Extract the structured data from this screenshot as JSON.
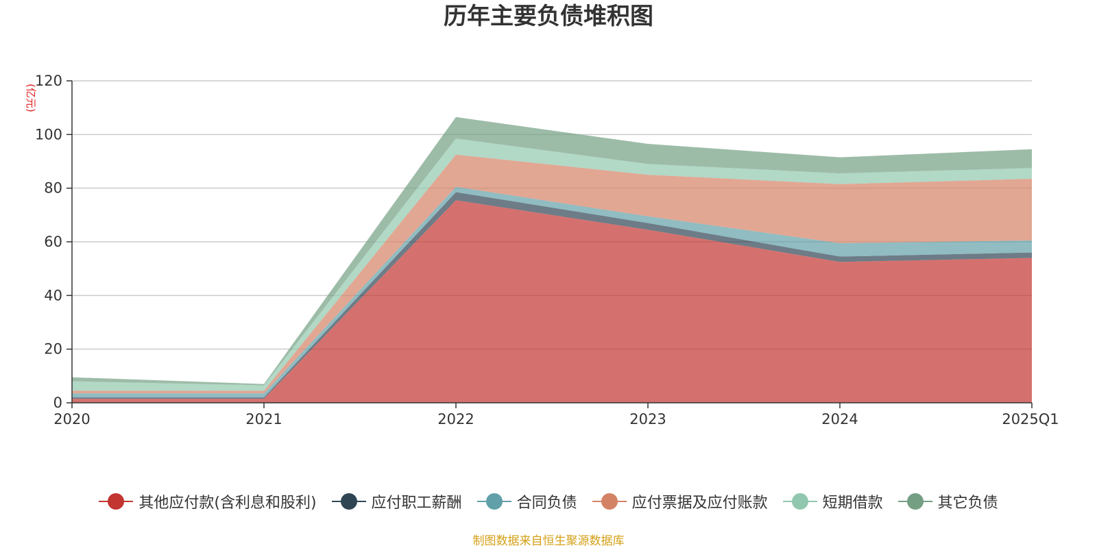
{
  "chart_data": {
    "type": "area",
    "stacked": true,
    "title": "历年主要负债堆积图",
    "ylabel": "(亿元)",
    "xlabel": "",
    "ylim": [
      0,
      120
    ],
    "yticks": [
      0,
      20,
      40,
      60,
      80,
      100,
      120
    ],
    "grid": true,
    "legend_position": "bottom",
    "categories": [
      "2020",
      "2021",
      "2022",
      "2023",
      "2024",
      "2025Q1"
    ],
    "series": [
      {
        "name": "其他应付款(含利息和股利)",
        "color": "#c23531",
        "values": [
          1.5,
          1.5,
          75.5,
          64.5,
          52.5,
          54.0
        ]
      },
      {
        "name": "应付职工薪酬",
        "color": "#2f4554",
        "values": [
          0.5,
          0.5,
          3.0,
          2.5,
          2.0,
          2.0
        ]
      },
      {
        "name": "合同负债",
        "color": "#61a0a8",
        "values": [
          1.5,
          1.5,
          2.0,
          2.5,
          5.0,
          4.5
        ]
      },
      {
        "name": "应付票据及应付账款",
        "color": "#d48265",
        "values": [
          1.0,
          1.0,
          12.0,
          15.5,
          22.0,
          23.0
        ]
      },
      {
        "name": "短期借款",
        "color": "#91c7ae",
        "values": [
          3.5,
          2.0,
          6.0,
          4.0,
          4.0,
          4.0
        ]
      },
      {
        "name": "其它负债",
        "color": "#749f83",
        "values": [
          1.5,
          0.5,
          8.0,
          7.5,
          6.0,
          7.0
        ]
      }
    ]
  },
  "source_note": "制图数据来自恒生聚源数据库"
}
